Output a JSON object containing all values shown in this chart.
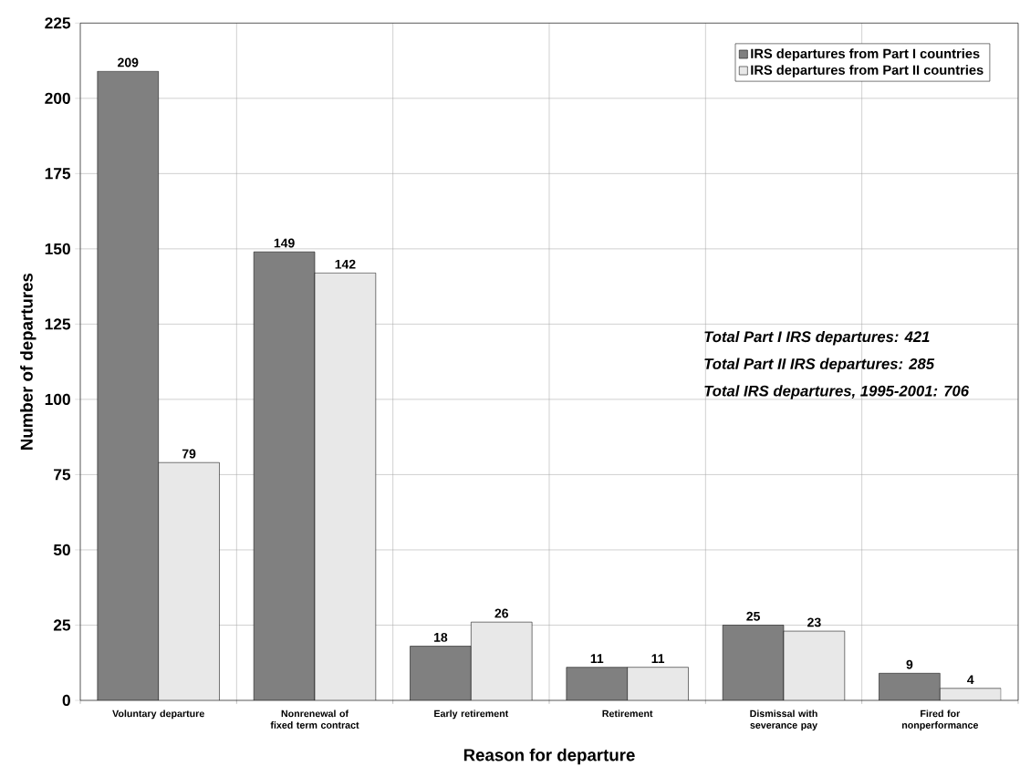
{
  "chart_data": {
    "type": "bar",
    "xlabel": "Reason for departure",
    "ylabel": "Number of departures",
    "categories": [
      "Voluntary departure",
      "Nonrenewal of fixed term contract",
      "Early retirement",
      "Retirement",
      "Dismissal with severance pay",
      "Fired for nonperformance"
    ],
    "series": [
      {
        "name": "IRS departures from Part I countries",
        "color": "#808080",
        "values": [
          209,
          149,
          18,
          11,
          25,
          9
        ]
      },
      {
        "name": "IRS departures from Part II countries",
        "color": "#e8e8e8",
        "values": [
          79,
          142,
          26,
          11,
          23,
          4
        ]
      }
    ],
    "ylim": [
      0,
      225
    ],
    "yticks": [
      0,
      25,
      50,
      75,
      100,
      125,
      150,
      175,
      200,
      225
    ],
    "grid": true,
    "legend": "top right",
    "data_labels": true,
    "annotations": [
      "Total Part I IRS departures: 421",
      "Total Part II IRS departures: 285",
      "Total IRS departures, 1995-2001: 706"
    ]
  }
}
